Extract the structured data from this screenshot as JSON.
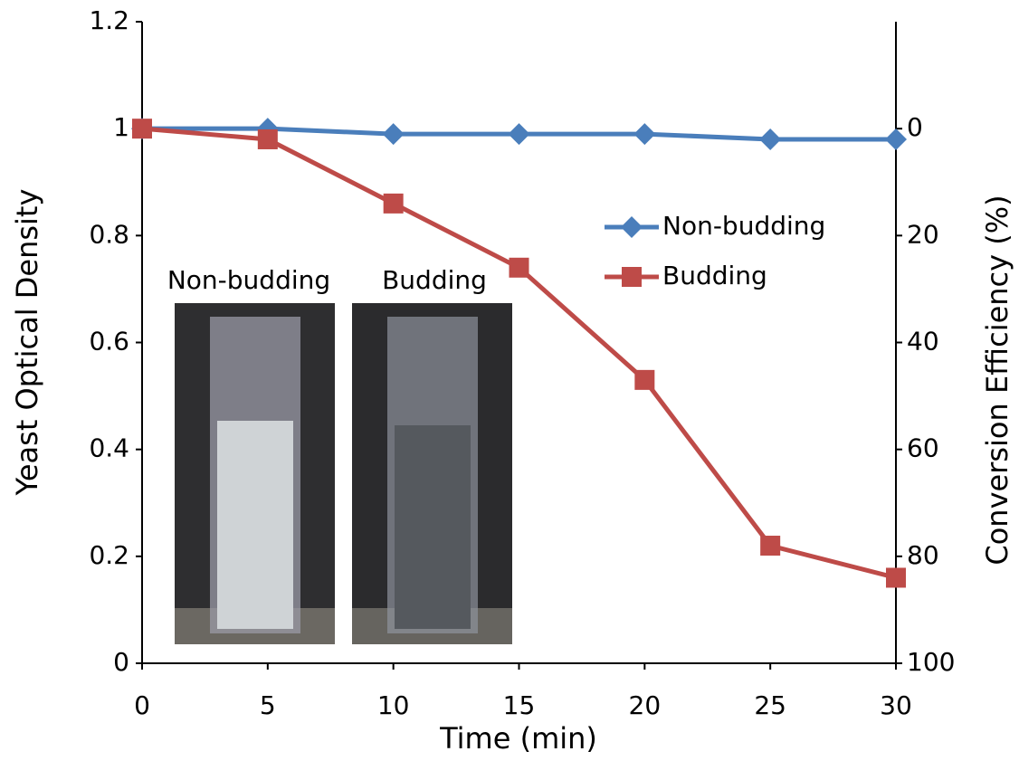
{
  "chart_data": {
    "type": "line",
    "x_label": "Time (min)",
    "y_label": "Yeast Optical Density",
    "y2_label": "Conversion Efficiency (%)",
    "x": [
      0,
      5,
      10,
      15,
      20,
      25,
      30
    ],
    "xlim": [
      0,
      30
    ],
    "xticks": [
      0,
      5,
      10,
      15,
      20,
      25,
      30
    ],
    "ylim": [
      0,
      1.2
    ],
    "yticks": [
      0,
      0.2,
      0.4,
      0.6,
      0.8,
      1,
      1.2
    ],
    "y2lim": [
      100,
      -20
    ],
    "y2ticks": [
      0,
      20,
      40,
      60,
      80,
      100
    ],
    "grid": false,
    "legend": "right",
    "series": [
      {
        "name": "Non-budding",
        "color": "#4a7ebb",
        "marker": "diamond",
        "values": [
          1,
          1,
          0.99,
          0.99,
          0.99,
          0.98,
          0.98
        ]
      },
      {
        "name": "Budding",
        "color": "#be4b48",
        "marker": "square",
        "values": [
          1,
          0.98,
          0.86,
          0.74,
          0.53,
          0.22,
          0.16
        ]
      }
    ],
    "annotations": [
      "Non-budding",
      "Budding"
    ]
  }
}
